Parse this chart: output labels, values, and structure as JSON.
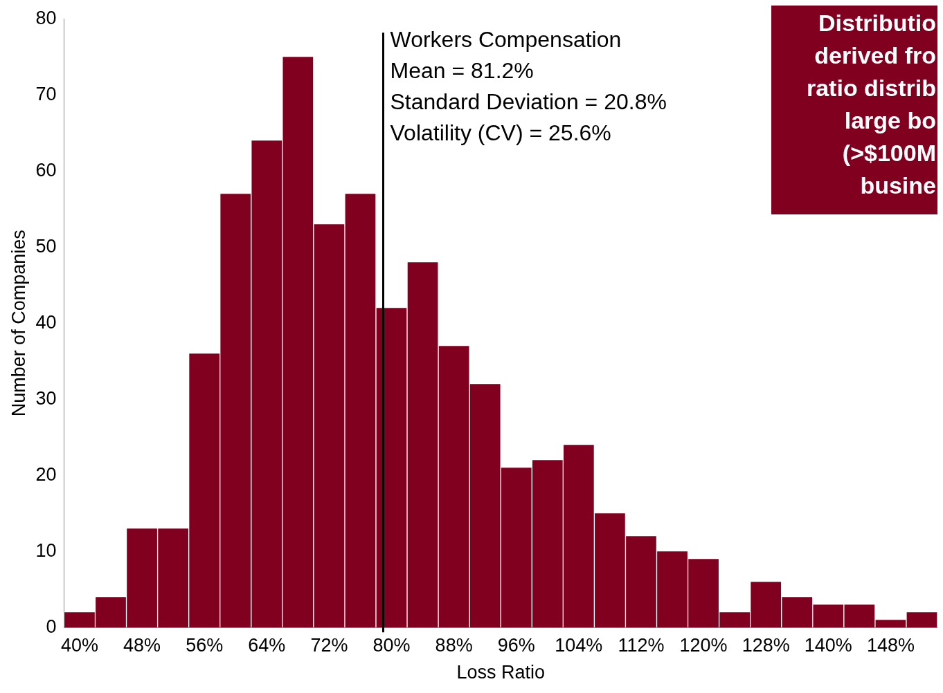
{
  "chart_data": {
    "type": "bar",
    "xlabel": "Loss Ratio",
    "ylabel": "Number of Companies",
    "categories": [
      "40%",
      null,
      "48%",
      null,
      "56%",
      null,
      "64%",
      null,
      "72%",
      null,
      "80%",
      null,
      "88%",
      null,
      "96%",
      null,
      "104%",
      null,
      "112%",
      null,
      "120%",
      null,
      "128%",
      null,
      "140%",
      null,
      "148%",
      null
    ],
    "values": [
      2,
      4,
      13,
      13,
      36,
      57,
      64,
      75,
      53,
      57,
      42,
      48,
      37,
      32,
      21,
      22,
      24,
      15,
      12,
      10,
      9,
      2,
      6,
      4,
      3,
      3,
      1,
      2
    ],
    "color": "#82001f",
    "ylim": [
      0,
      80
    ],
    "yticks": [
      0,
      10,
      20,
      30,
      40,
      50,
      60,
      70,
      80
    ],
    "grid": false,
    "legend": false,
    "ref_lines": [
      {
        "axis": "x",
        "value": "80%",
        "label": "Workers Compensation\nMean = 81.2%\nStandard Deviation = 20.8%\nVolatility (CV) = 25.6%",
        "color": "#000000"
      }
    ],
    "annotations": [
      "Distributio\nderived fro\nratio distrib\nlarge bo\n(>$100M\nbusine"
    ]
  }
}
